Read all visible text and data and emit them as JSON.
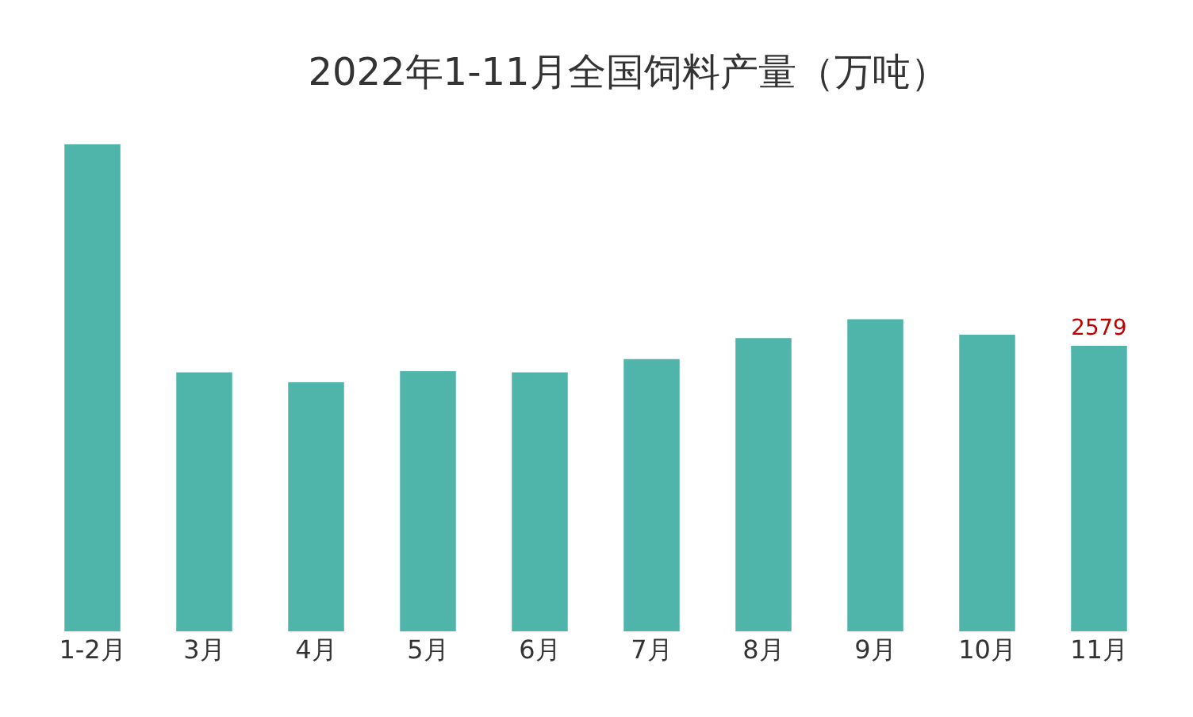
{
  "chart_data": {
    "type": "bar",
    "title": "2022年1-11月全国饲料产量（万吨）",
    "categories": [
      "1-2月",
      "3月",
      "4月",
      "5月",
      "6月",
      "7月",
      "8月",
      "9月",
      "10月",
      "11月"
    ],
    "values": [
      4400,
      2340,
      2250,
      2350,
      2340,
      2460,
      2650,
      2820,
      2680,
      2579
    ],
    "value_labels": [
      null,
      null,
      null,
      null,
      null,
      null,
      null,
      null,
      null,
      "2579"
    ],
    "tick_labels": "x",
    "color": "#4fb5aa"
  }
}
